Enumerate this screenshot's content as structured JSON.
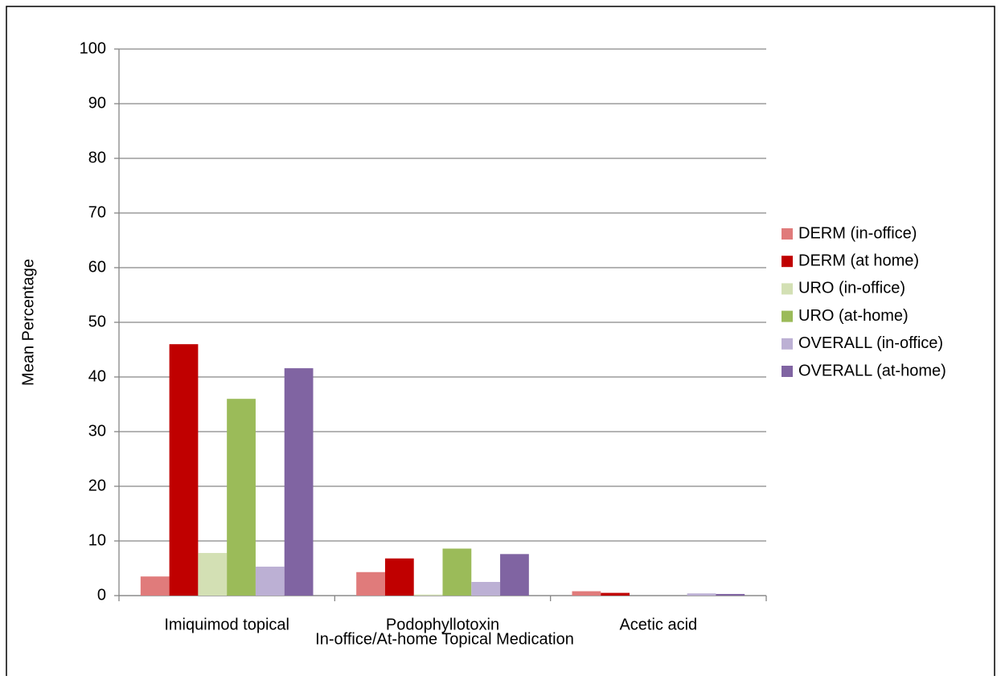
{
  "chart_data": {
    "type": "bar",
    "x_label": "In-office/At-home Topical Medication",
    "y_label": "Mean Percentage",
    "categories": [
      "Imiquimod topical",
      "Podophyllotoxin",
      "Acetic acid"
    ],
    "series": [
      {
        "name": "DERM (in-office)",
        "color": "#e07b7b",
        "values": [
          3.5,
          4.3,
          0.8
        ]
      },
      {
        "name": "DERM (at home)",
        "color": "#c00000",
        "values": [
          46,
          6.8,
          0.5
        ]
      },
      {
        "name": "URO (in-office)",
        "color": "#d3e0b4",
        "values": [
          7.8,
          0.2,
          0
        ]
      },
      {
        "name": "URO (at-home)",
        "color": "#9bbb59",
        "values": [
          36,
          8.6,
          0
        ]
      },
      {
        "name": "OVERALL (in-office)",
        "color": "#bcb0d4",
        "values": [
          5.3,
          2.5,
          0.4
        ]
      },
      {
        "name": "OVERALL (at-home)",
        "color": "#8064a2",
        "values": [
          41.6,
          7.6,
          0.3
        ]
      }
    ],
    "ylim": [
      0,
      100
    ],
    "yticks": [
      0,
      10,
      20,
      30,
      40,
      50,
      60,
      70,
      80,
      90,
      100
    ],
    "grid": true,
    "legend": "right"
  }
}
